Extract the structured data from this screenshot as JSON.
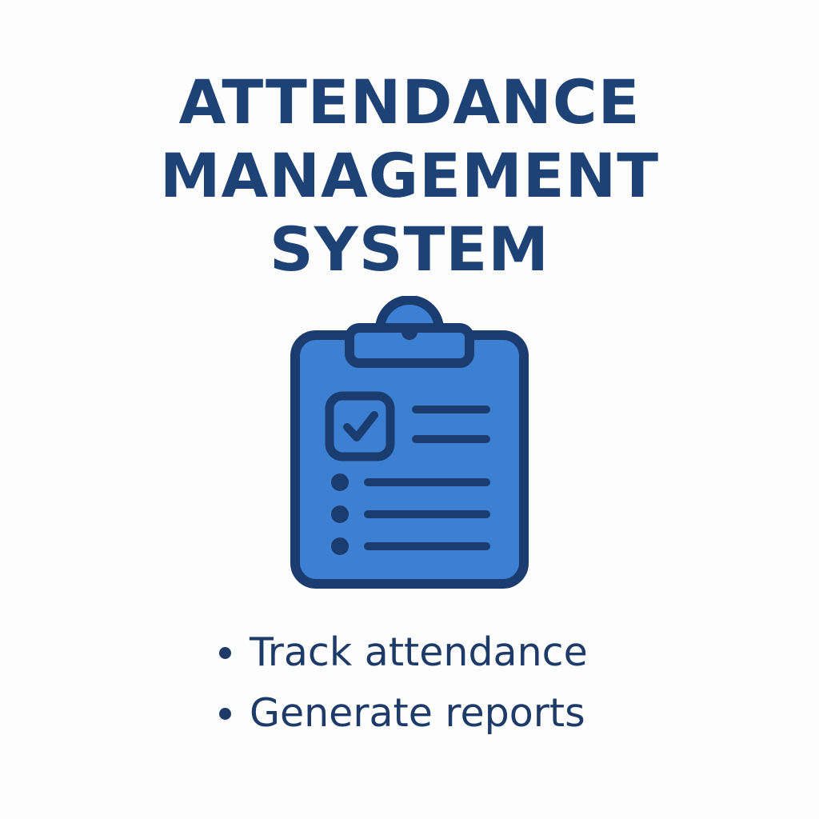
{
  "title": {
    "line1": "ATTENDANCE",
    "line2": "MANAGEMENT",
    "line3": "SYSTEM"
  },
  "icon": {
    "name": "clipboard-checklist-icon",
    "fill_color": "#3d7fd0",
    "stroke_color": "#1b3c6e"
  },
  "features": [
    "Track attendance",
    "Generate reports"
  ],
  "colors": {
    "title": "#1e4275",
    "text": "#1e3a68",
    "background": "#fdfdfd"
  }
}
